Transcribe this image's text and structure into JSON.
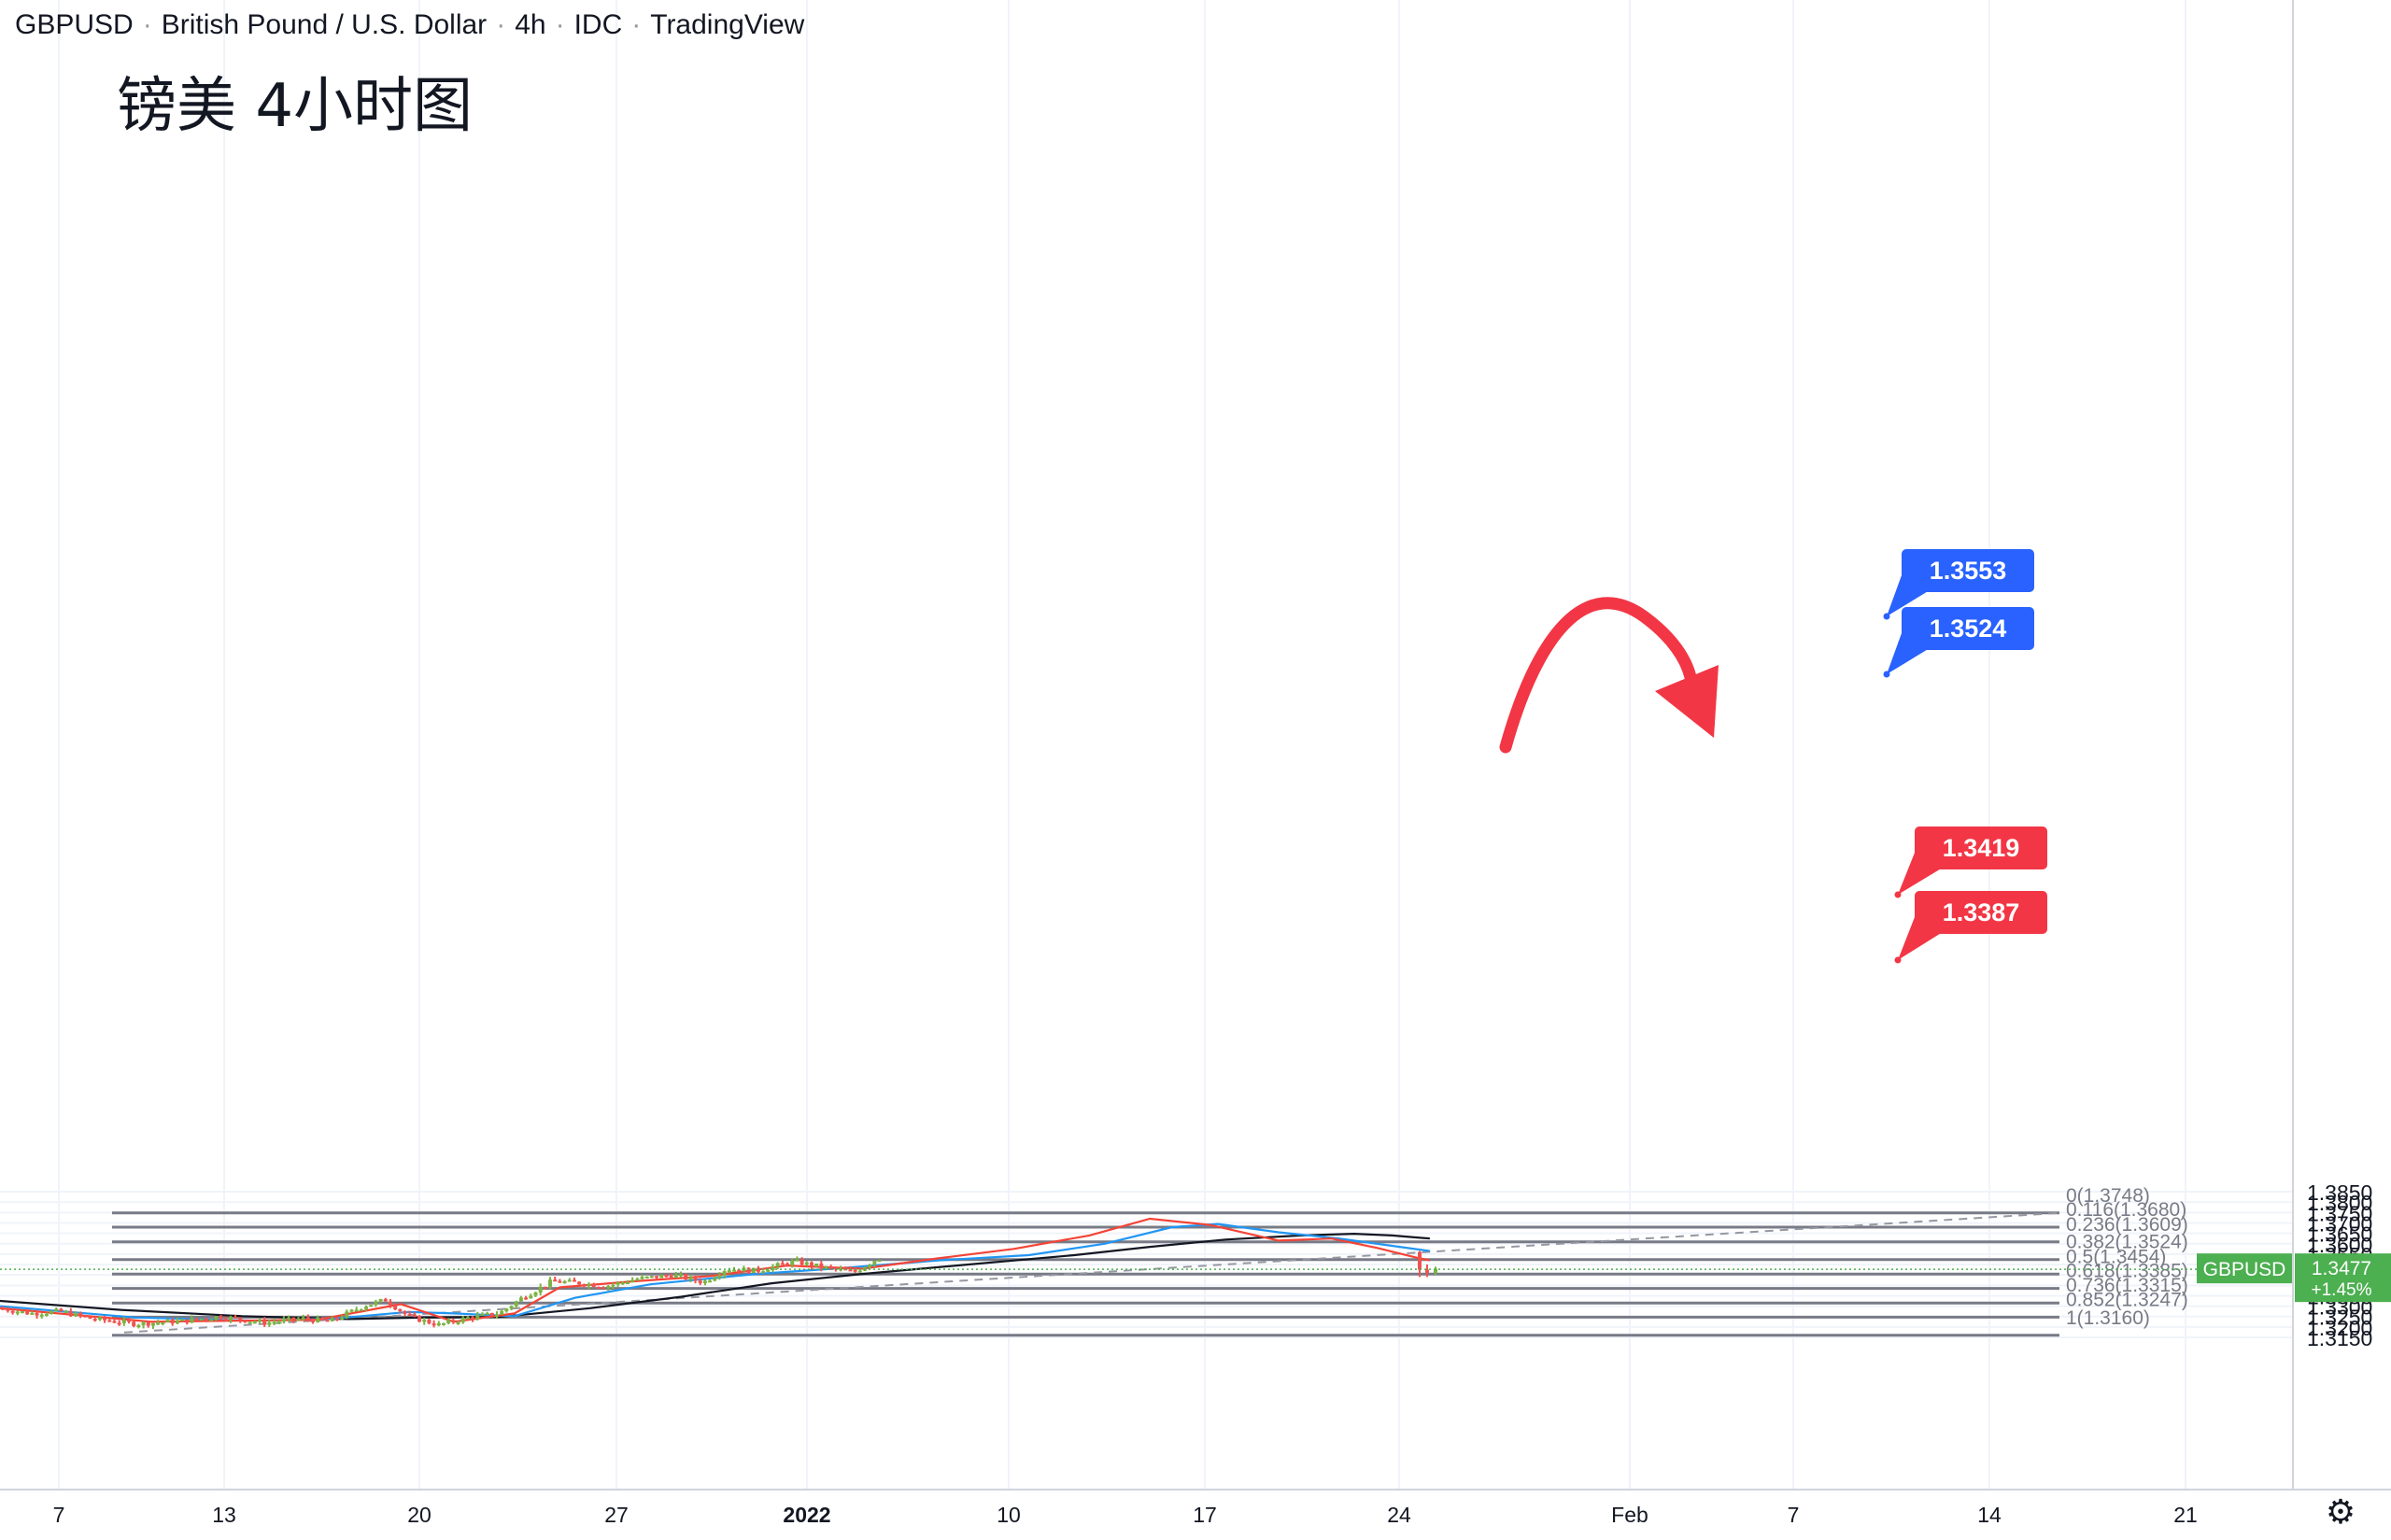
{
  "header": {
    "symbol": "GBPUSD",
    "instrument": "British Pound / U.S. Dollar",
    "interval": "4h",
    "source": "IDC",
    "platform": "TradingView"
  },
  "annotation_title": "镑美 4小时图",
  "settings_icon": "gear-icon",
  "colors": {
    "up": "#26a69a",
    "up_body": "#7cb342",
    "down": "#ef5350",
    "fib_line": "#787b86",
    "ma_fast": "#f44336",
    "ma_mid": "#2196f3",
    "ma_slow": "#131722",
    "blue_label": "#2962ff",
    "red_label": "#f23645",
    "arrow": "#f23645",
    "price_tag": "#4caf50"
  },
  "chart_data": {
    "type": "candlestick",
    "symbol": "GBPUSD",
    "interval": "4h",
    "ylim": [
      1.312,
      1.385
    ],
    "y_ticks": [
      "1.3150",
      "1.3200",
      "1.3250",
      "1.3300",
      "1.3350",
      "1.3400",
      "1.3450",
      "1.3500",
      "1.3550",
      "1.3600",
      "1.3650",
      "1.3700",
      "1.3750",
      "1.3800",
      "1.3850"
    ],
    "x_ticks": [
      "7",
      "13",
      "20",
      "27",
      "2022",
      "10",
      "17",
      "24",
      "Feb",
      "7",
      "14",
      "21"
    ],
    "fibonacci": [
      {
        "level": "0",
        "price": 1.3748
      },
      {
        "level": "0.116",
        "price": 1.368
      },
      {
        "level": "0.236",
        "price": 1.3609
      },
      {
        "level": "0.382",
        "price": 1.3524
      },
      {
        "level": "0.5",
        "price": 1.3454
      },
      {
        "level": "0.618",
        "price": 1.3385
      },
      {
        "level": "0.736",
        "price": 1.3315
      },
      {
        "level": "0.852",
        "price": 1.3247
      },
      {
        "level": "1",
        "price": 1.316
      }
    ],
    "price_labels": [
      {
        "text": "1.3553",
        "value": 1.3553,
        "kind": "resistance"
      },
      {
        "text": "1.3524",
        "value": 1.3524,
        "kind": "resistance"
      },
      {
        "text": "1.3419",
        "value": 1.3419,
        "kind": "support"
      },
      {
        "text": "1.3387",
        "value": 1.3387,
        "kind": "support"
      }
    ],
    "last_price": {
      "symbol": "GBPUSD",
      "price": "1.3477",
      "change": "+1.45%"
    },
    "path_anchors": [
      {
        "x": 0,
        "y": 1.329
      },
      {
        "x": 20,
        "y": 1.3265
      },
      {
        "x": 40,
        "y": 1.3275
      },
      {
        "x": 60,
        "y": 1.324
      },
      {
        "x": 90,
        "y": 1.3215
      },
      {
        "x": 120,
        "y": 1.3228
      },
      {
        "x": 145,
        "y": 1.325
      },
      {
        "x": 175,
        "y": 1.322
      },
      {
        "x": 200,
        "y": 1.324
      },
      {
        "x": 218,
        "y": 1.3225
      },
      {
        "x": 240,
        "y": 1.33
      },
      {
        "x": 255,
        "y": 1.333
      },
      {
        "x": 270,
        "y": 1.325
      },
      {
        "x": 290,
        "y": 1.321
      },
      {
        "x": 310,
        "y": 1.3245
      },
      {
        "x": 330,
        "y": 1.3265
      },
      {
        "x": 345,
        "y": 1.334
      },
      {
        "x": 365,
        "y": 1.342
      },
      {
        "x": 385,
        "y": 1.341
      },
      {
        "x": 400,
        "y": 1.3395
      },
      {
        "x": 420,
        "y": 1.343
      },
      {
        "x": 445,
        "y": 1.345
      },
      {
        "x": 465,
        "y": 1.3415
      },
      {
        "x": 480,
        "y": 1.348
      },
      {
        "x": 500,
        "y": 1.347
      },
      {
        "x": 525,
        "y": 1.3515
      },
      {
        "x": 545,
        "y": 1.3485
      },
      {
        "x": 565,
        "y": 1.3465
      },
      {
        "x": 580,
        "y": 1.353
      },
      {
        "x": 605,
        "y": 1.3545
      },
      {
        "x": 620,
        "y": 1.352
      },
      {
        "x": 640,
        "y": 1.3555
      },
      {
        "x": 660,
        "y": 1.359
      },
      {
        "x": 680,
        "y": 1.3555
      },
      {
        "x": 700,
        "y": 1.36
      },
      {
        "x": 715,
        "y": 1.364
      },
      {
        "x": 730,
        "y": 1.37
      },
      {
        "x": 745,
        "y": 1.3725
      },
      {
        "x": 755,
        "y": 1.3745
      },
      {
        "x": 770,
        "y": 1.3705
      },
      {
        "x": 785,
        "y": 1.3665
      },
      {
        "x": 800,
        "y": 1.367
      },
      {
        "x": 815,
        "y": 1.364
      },
      {
        "x": 830,
        "y": 1.3585
      },
      {
        "x": 845,
        "y": 1.361
      },
      {
        "x": 860,
        "y": 1.3625
      },
      {
        "x": 875,
        "y": 1.363
      },
      {
        "x": 885,
        "y": 1.3605
      },
      {
        "x": 900,
        "y": 1.3575
      },
      {
        "x": 915,
        "y": 1.355
      },
      {
        "x": 925,
        "y": 1.3545
      },
      {
        "x": 932,
        "y": 1.3475
      },
      {
        "x": 938,
        "y": 1.3465
      },
      {
        "x": 943,
        "y": 1.348
      }
    ],
    "ma_fast": [
      {
        "x": 0,
        "y": 1.329
      },
      {
        "x": 100,
        "y": 1.3225
      },
      {
        "x": 210,
        "y": 1.3235
      },
      {
        "x": 265,
        "y": 1.331
      },
      {
        "x": 300,
        "y": 1.3225
      },
      {
        "x": 340,
        "y": 1.3265
      },
      {
        "x": 370,
        "y": 1.339
      },
      {
        "x": 420,
        "y": 1.342
      },
      {
        "x": 470,
        "y": 1.3445
      },
      {
        "x": 520,
        "y": 1.3495
      },
      {
        "x": 570,
        "y": 1.348
      },
      {
        "x": 620,
        "y": 1.353
      },
      {
        "x": 670,
        "y": 1.3575
      },
      {
        "x": 720,
        "y": 1.364
      },
      {
        "x": 760,
        "y": 1.372
      },
      {
        "x": 800,
        "y": 1.369
      },
      {
        "x": 845,
        "y": 1.3615
      },
      {
        "x": 880,
        "y": 1.3625
      },
      {
        "x": 910,
        "y": 1.358
      },
      {
        "x": 935,
        "y": 1.3535
      },
      {
        "x": 945,
        "y": 1.352
      }
    ],
    "ma_mid": [
      {
        "x": 0,
        "y": 1.33
      },
      {
        "x": 90,
        "y": 1.3245
      },
      {
        "x": 170,
        "y": 1.323
      },
      {
        "x": 220,
        "y": 1.324
      },
      {
        "x": 270,
        "y": 1.3272
      },
      {
        "x": 300,
        "y": 1.3265
      },
      {
        "x": 340,
        "y": 1.3252
      },
      {
        "x": 380,
        "y": 1.334
      },
      {
        "x": 430,
        "y": 1.3405
      },
      {
        "x": 500,
        "y": 1.3455
      },
      {
        "x": 560,
        "y": 1.3485
      },
      {
        "x": 620,
        "y": 1.352
      },
      {
        "x": 680,
        "y": 1.3545
      },
      {
        "x": 730,
        "y": 1.36
      },
      {
        "x": 775,
        "y": 1.368
      },
      {
        "x": 805,
        "y": 1.3695
      },
      {
        "x": 845,
        "y": 1.3655
      },
      {
        "x": 885,
        "y": 1.3625
      },
      {
        "x": 920,
        "y": 1.359
      },
      {
        "x": 945,
        "y": 1.3565
      }
    ],
    "ma_slow": [
      {
        "x": 0,
        "y": 1.3325
      },
      {
        "x": 80,
        "y": 1.3282
      },
      {
        "x": 160,
        "y": 1.3252
      },
      {
        "x": 230,
        "y": 1.3238
      },
      {
        "x": 280,
        "y": 1.3245
      },
      {
        "x": 330,
        "y": 1.3248
      },
      {
        "x": 390,
        "y": 1.329
      },
      {
        "x": 450,
        "y": 1.3345
      },
      {
        "x": 510,
        "y": 1.341
      },
      {
        "x": 570,
        "y": 1.3455
      },
      {
        "x": 640,
        "y": 1.35
      },
      {
        "x": 710,
        "y": 1.3545
      },
      {
        "x": 760,
        "y": 1.3585
      },
      {
        "x": 810,
        "y": 1.362
      },
      {
        "x": 860,
        "y": 1.364
      },
      {
        "x": 895,
        "y": 1.3648
      },
      {
        "x": 920,
        "y": 1.364
      },
      {
        "x": 945,
        "y": 1.3625
      }
    ]
  }
}
